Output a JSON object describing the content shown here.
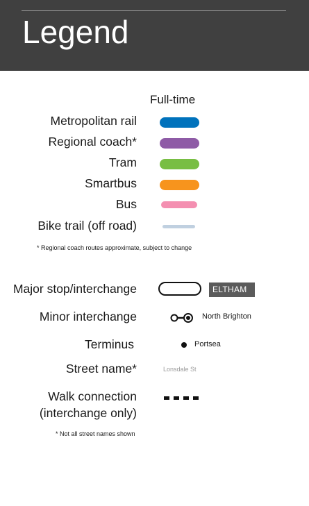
{
  "header": {
    "title": "Legend"
  },
  "services": {
    "column_heading": "Full-time",
    "items": [
      {
        "label": "Metropolitan rail",
        "color": "#0072bc"
      },
      {
        "label": "Regional coach*",
        "color": "#8e5ba6"
      },
      {
        "label": "Tram",
        "color": "#78be43"
      },
      {
        "label": "Smartbus",
        "color": "#f7941d"
      },
      {
        "label": "Bus",
        "color": "#f48fb1"
      },
      {
        "label": "Bike trail (off road)",
        "color": "#c0d0e0"
      }
    ],
    "footnote": "* Regional coach routes approximate, subject to change"
  },
  "stops": {
    "major": {
      "label": "Major stop/interchange",
      "example": "ELTHAM"
    },
    "minor": {
      "label": "Minor interchange",
      "example": "North Brighton"
    },
    "terminus": {
      "label": "Terminus",
      "example": "Portsea"
    },
    "street": {
      "label": "Street name*",
      "example": "Lonsdale St"
    },
    "walk": {
      "label_line1": "Walk connection",
      "label_line2": "(interchange only)"
    },
    "footnote": "* Not all street names shown"
  }
}
